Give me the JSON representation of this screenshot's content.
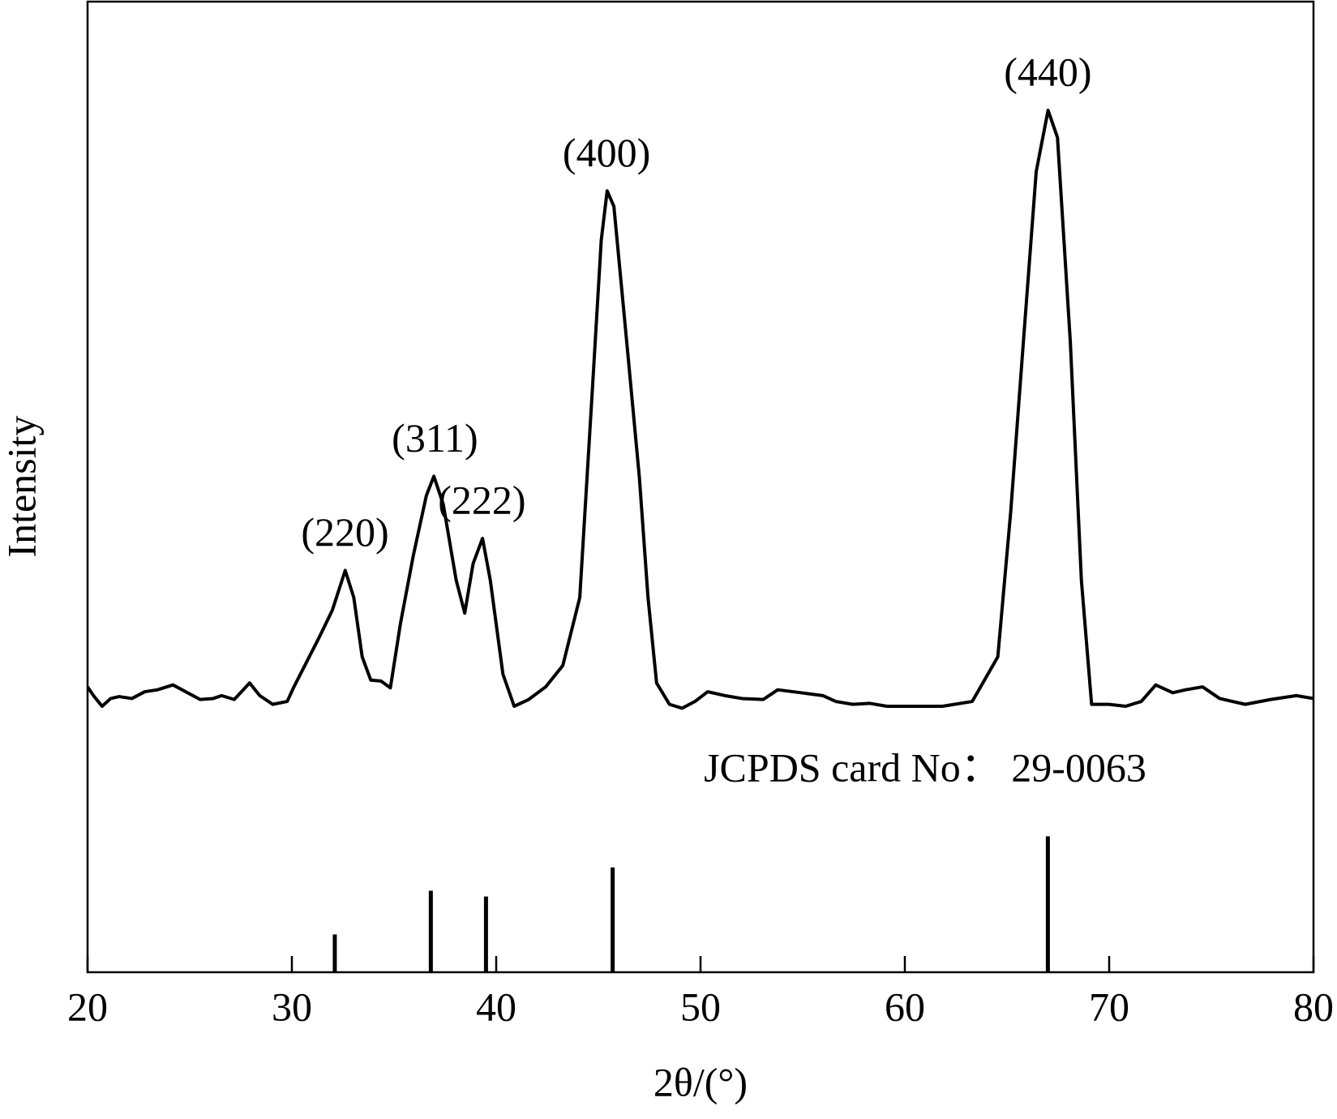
{
  "chart_data": {
    "type": "line",
    "xlabel": "2θ/(°)",
    "ylabel": "Intensity",
    "color": "#000000",
    "xlim": [
      20,
      80
    ],
    "xticks": [
      20,
      30,
      40,
      50,
      60,
      70,
      80
    ],
    "ylim": [
      0,
      100
    ],
    "x": [
      20.0,
      20.29,
      20.71,
      21.13,
      21.54,
      22.17,
      22.8,
      23.42,
      24.18,
      24.89,
      25.51,
      26.14,
      26.56,
      27.18,
      27.93,
      28.43,
      29.06,
      29.77,
      30.1,
      30.73,
      31.36,
      31.98,
      32.61,
      33.03,
      33.44,
      33.86,
      34.36,
      34.82,
      35.32,
      35.95,
      36.58,
      36.95,
      37.41,
      38.04,
      38.46,
      38.87,
      39.33,
      39.71,
      40.33,
      40.88,
      41.59,
      42.42,
      43.26,
      44.09,
      44.72,
      45.14,
      45.43,
      45.76,
      46.39,
      47.01,
      47.43,
      47.85,
      48.48,
      49.1,
      49.73,
      50.35,
      51.19,
      52.03,
      53.07,
      53.78,
      54.53,
      55.99,
      56.62,
      57.45,
      58.29,
      59.12,
      60.79,
      61.84,
      63.3,
      64.55,
      65.18,
      65.8,
      66.43,
      67.01,
      67.47,
      68.1,
      68.64,
      69.14,
      69.98,
      70.81,
      71.57,
      72.28,
      73.11,
      73.74,
      74.57,
      75.41,
      76.66,
      77.91,
      79.16,
      80.0
    ],
    "values": [
      29.4,
      28.5,
      27.4,
      28.2,
      28.4,
      28.2,
      28.9,
      29.1,
      29.6,
      28.8,
      28.1,
      28.2,
      28.5,
      28.1,
      29.8,
      28.5,
      27.6,
      27.9,
      29.4,
      32.0,
      34.6,
      37.3,
      41.4,
      38.6,
      32.5,
      30.1,
      30.0,
      29.3,
      36.0,
      43.0,
      49.1,
      51.1,
      48.2,
      40.4,
      37.0,
      42.1,
      44.7,
      40.4,
      30.7,
      27.4,
      28.1,
      29.4,
      31.6,
      38.6,
      60.5,
      75.4,
      80.5,
      78.9,
      64.9,
      50.9,
      38.6,
      29.8,
      27.6,
      27.2,
      27.9,
      28.9,
      28.5,
      28.2,
      28.1,
      29.1,
      28.9,
      28.5,
      27.9,
      27.6,
      27.7,
      27.4,
      27.4,
      27.4,
      27.9,
      32.5,
      47.4,
      64.9,
      82.5,
      88.8,
      86.0,
      64.9,
      40.4,
      27.6,
      27.6,
      27.4,
      27.9,
      29.6,
      28.8,
      29.1,
      29.4,
      28.2,
      27.6,
      28.1,
      28.5,
      28.2
    ],
    "peaks": [
      {
        "label": "(220)",
        "x": 32.6,
        "y": 41.4
      },
      {
        "label": "(311)",
        "x": 37.0,
        "y": 51.1
      },
      {
        "label": "(222)",
        "x": 39.3,
        "y": 44.7
      },
      {
        "label": "(400)",
        "x": 45.4,
        "y": 80.5
      },
      {
        "label": "(440)",
        "x": 67.0,
        "y": 88.8
      }
    ],
    "reference": {
      "label": "JCPDS card No： 29-0063",
      "x": [
        32.1,
        36.8,
        39.5,
        45.7,
        67.0
      ],
      "values": [
        3.9,
        8.4,
        7.8,
        10.8,
        14.0
      ]
    }
  }
}
